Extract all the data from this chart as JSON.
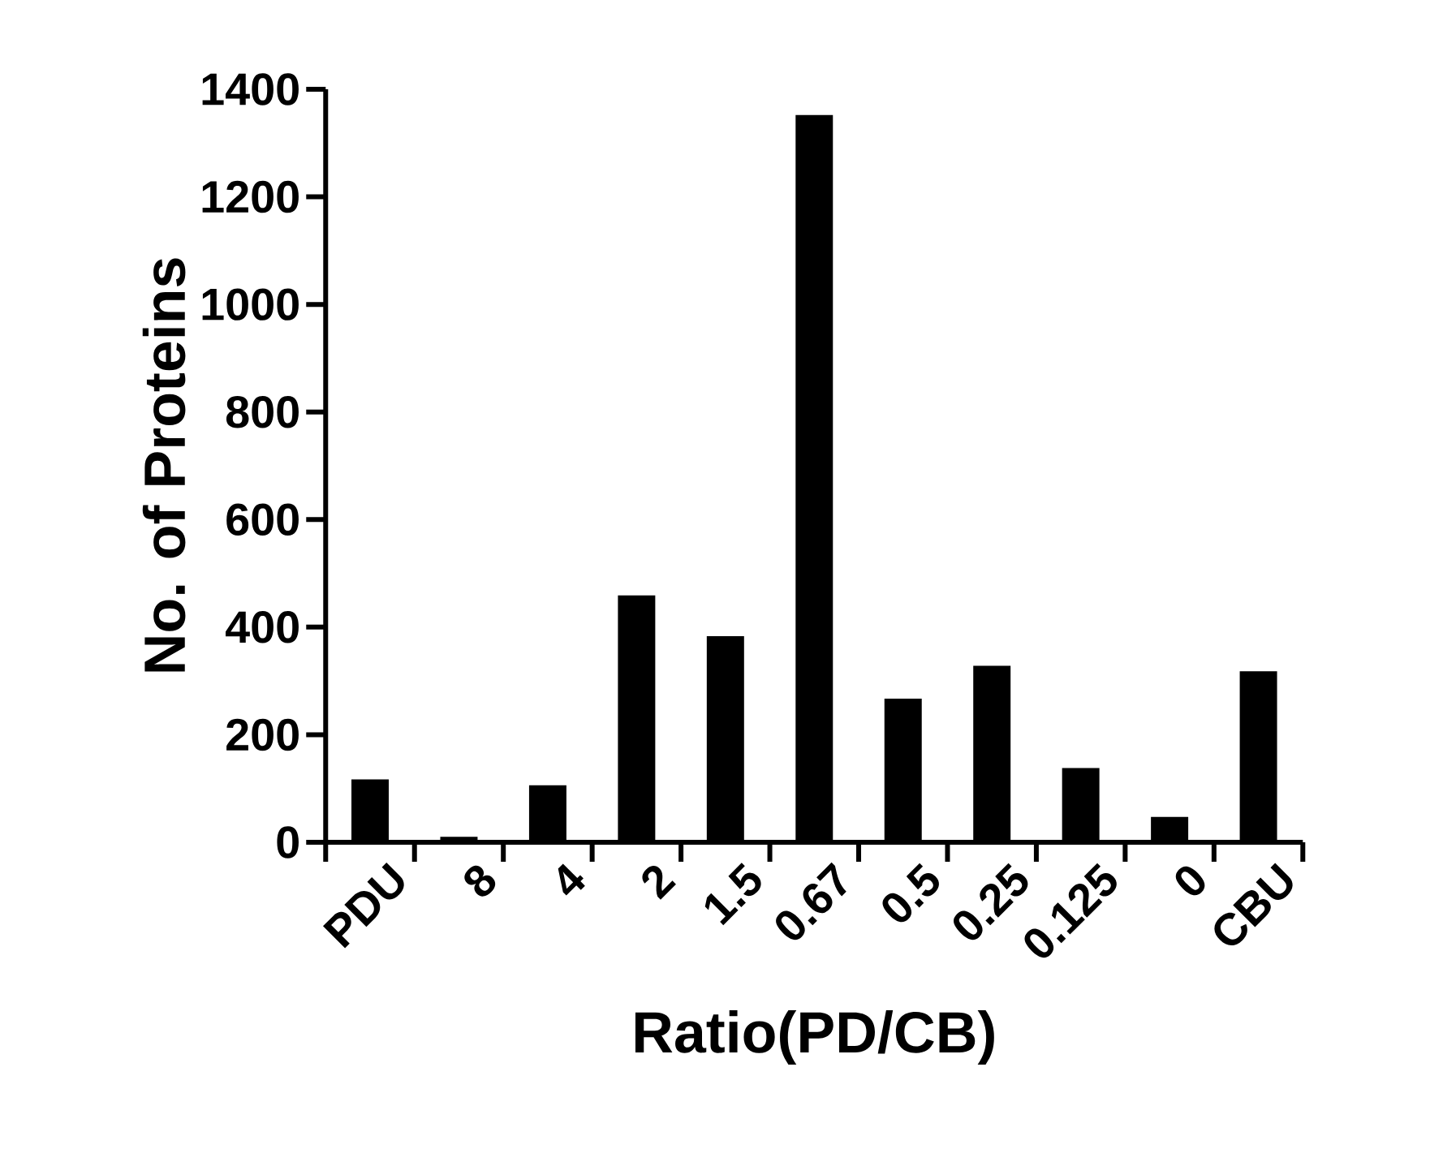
{
  "chart_data": {
    "type": "bar",
    "xlabel": "Ratio(PD/CB)",
    "ylabel": "No. of Proteins",
    "categories": [
      "PDU",
      "8",
      "4",
      "2",
      "1.5",
      "0.67",
      "0.5",
      "0.25",
      "0.125",
      "0",
      "CBU"
    ],
    "values": [
      117,
      10,
      106,
      459,
      383,
      1352,
      267,
      328,
      138,
      47,
      318
    ],
    "color": "#000000",
    "ylim": [
      0,
      1400
    ],
    "yticks": [
      0,
      200,
      400,
      600,
      800,
      1000,
      1200,
      1400
    ]
  }
}
